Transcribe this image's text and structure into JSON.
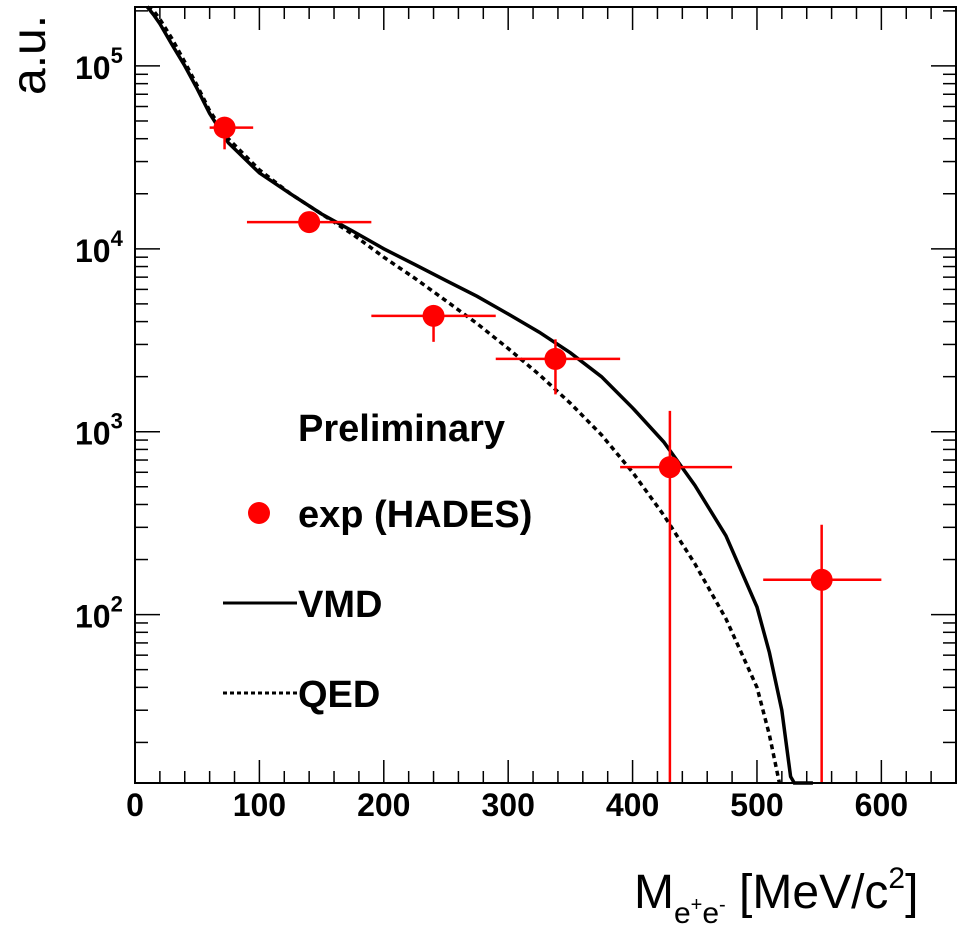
{
  "chart_data": {
    "type": "scatter",
    "title": "",
    "xlabel": {
      "main": "M",
      "sub": "e+e-",
      "sub_parts": [
        "e",
        "+",
        "e",
        "-"
      ],
      "unit_prefix": " [MeV/c",
      "unit_sup": "2",
      "unit_suffix": "]"
    },
    "ylabel": "a.u.",
    "xlim": [
      0,
      660
    ],
    "ylim": [
      12,
      210000
    ],
    "yscale": "log",
    "x_ticks": [
      0,
      100,
      200,
      300,
      400,
      500,
      600
    ],
    "x_tick_labels": [
      "0",
      "100",
      "200",
      "300",
      "400",
      "500",
      "600"
    ],
    "y_ticks": [
      100,
      1000,
      10000,
      100000
    ],
    "y_tick_labels": [
      {
        "base": "10",
        "exp": "2"
      },
      {
        "base": "10",
        "exp": "3"
      },
      {
        "base": "10",
        "exp": "4"
      },
      {
        "base": "10",
        "exp": "5"
      }
    ],
    "grid": false,
    "legend_position": "center-left",
    "annotation": "Preliminary",
    "colors": {
      "exp": "#ff0000",
      "vmd": "#000000",
      "qed": "#000000"
    },
    "series": [
      {
        "name": "exp (HADES)",
        "kind": "points",
        "points": [
          {
            "x": 72,
            "y": 46000,
            "xerr": [
              60,
              95
            ],
            "yerr": [
              35000,
              46000
            ]
          },
          {
            "x": 140,
            "y": 14000,
            "xerr": [
              90,
              190
            ],
            "yerr": [
              14000,
              14000
            ]
          },
          {
            "x": 240,
            "y": 4300,
            "xerr": [
              190,
              290
            ],
            "yerr": [
              3100,
              4300
            ]
          },
          {
            "x": 338,
            "y": 2500,
            "xerr": [
              290,
              390
            ],
            "yerr": [
              1600,
              3200
            ]
          },
          {
            "x": 430,
            "y": 640,
            "xerr": [
              390,
              480
            ],
            "yerr": [
              12,
              1300
            ]
          },
          {
            "x": 552,
            "y": 155,
            "xerr": [
              505,
              600
            ],
            "yerr": [
              12,
              310
            ]
          }
        ]
      },
      {
        "name": "VMD",
        "kind": "line",
        "style": "solid",
        "x": [
          10,
          15,
          20,
          30,
          40,
          50,
          60,
          75,
          100,
          125,
          150,
          175,
          200,
          225,
          250,
          275,
          300,
          325,
          350,
          375,
          400,
          425,
          450,
          475,
          500,
          510,
          520,
          527,
          530,
          545
        ],
        "y": [
          210000,
          190000,
          170000,
          130000,
          100000,
          75000,
          55000,
          38000,
          26000,
          20000,
          15500,
          12500,
          10000,
          8200,
          6700,
          5500,
          4400,
          3500,
          2700,
          2000,
          1350,
          880,
          510,
          270,
          110,
          62,
          30,
          13,
          12,
          12
        ]
      },
      {
        "name": "QED",
        "kind": "line",
        "style": "dashed",
        "x": [
          10,
          15,
          20,
          30,
          40,
          50,
          60,
          75,
          100,
          125,
          150,
          175,
          200,
          225,
          250,
          275,
          300,
          325,
          350,
          375,
          400,
          425,
          450,
          475,
          500,
          510,
          518
        ],
        "y": [
          210000,
          200000,
          180000,
          140000,
          105000,
          78000,
          57000,
          40000,
          27000,
          20000,
          15500,
          12000,
          9000,
          6900,
          5200,
          3900,
          2850,
          2050,
          1430,
          960,
          600,
          350,
          190,
          95,
          40,
          22,
          12
        ]
      }
    ],
    "legend": [
      {
        "marker": "dot",
        "label": "exp (HADES)"
      },
      {
        "marker": "solid-line",
        "label": "VMD"
      },
      {
        "marker": "dashed-line",
        "label": "QED"
      }
    ]
  }
}
